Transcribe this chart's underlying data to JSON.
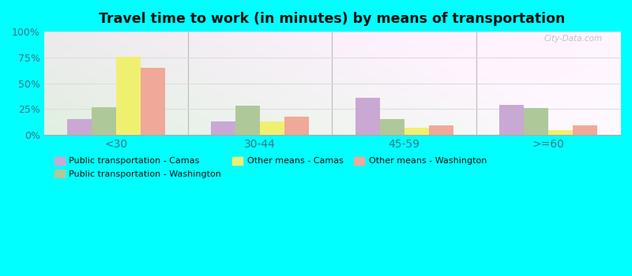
{
  "title": "Travel time to work (in minutes) by means of transportation",
  "categories": [
    "<30",
    "30-44",
    "45-59",
    ">=60"
  ],
  "series_order": [
    "Public transportation - Camas",
    "Public transportation - Washington",
    "Other means - Camas",
    "Other means - Washington"
  ],
  "series": {
    "Public transportation - Camas": [
      15,
      13,
      36,
      29
    ],
    "Public transportation - Washington": [
      27,
      28,
      15,
      26
    ],
    "Other means - Camas": [
      76,
      13,
      7,
      5
    ],
    "Other means - Washington": [
      65,
      18,
      9,
      9
    ]
  },
  "colors": {
    "Public transportation - Camas": "#c9a8d4",
    "Public transportation - Washington": "#afc89a",
    "Other means - Camas": "#f0f070",
    "Other means - Washington": "#f0a898"
  },
  "legend_order": [
    "Public transportation - Camas",
    "Public transportation - Washington",
    "Other means - Camas",
    "Other means - Washington"
  ],
  "ylim": [
    0,
    100
  ],
  "yticks": [
    0,
    25,
    50,
    75,
    100
  ],
  "ytick_labels": [
    "0%",
    "25%",
    "50%",
    "75%",
    "100%"
  ],
  "background_color": "#00ffff",
  "grid_color": "#dddddd",
  "title_color": "#111111",
  "tick_label_color": "#337788",
  "separator_color": "#bbbbbb",
  "watermark": "City-Data.com"
}
